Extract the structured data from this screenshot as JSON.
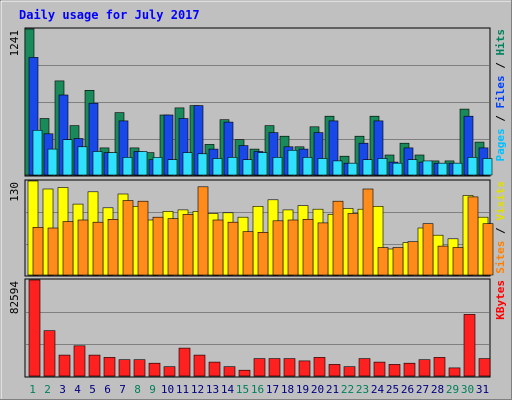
{
  "chart_data": {
    "type": "bar",
    "title": "Daily usage for July 2017",
    "categories": [
      "1",
      "2",
      "3",
      "4",
      "5",
      "6",
      "7",
      "8",
      "9",
      "10",
      "11",
      "12",
      "13",
      "14",
      "15",
      "16",
      "17",
      "18",
      "19",
      "20",
      "21",
      "22",
      "23",
      "24",
      "25",
      "26",
      "27",
      "28",
      "29",
      "30",
      "31"
    ],
    "weekend_days": [
      "1",
      "2",
      "8",
      "9",
      "15",
      "16",
      "22",
      "23",
      "29",
      "30"
    ],
    "panels": [
      {
        "max_label": "1241",
        "ylim": [
          0,
          1241
        ],
        "legend": [
          {
            "text": "Pages",
            "color": "#00c0ff"
          },
          {
            "text": " / ",
            "color": "#000000"
          },
          {
            "text": "Files",
            "color": "#0040ff"
          },
          {
            "text": " / ",
            "color": "#000000"
          },
          {
            "text": "Hits",
            "color": "#00805c"
          }
        ],
        "series": [
          {
            "name": "Hits",
            "color": "#1a8a5a",
            "values": [
              1241,
              480,
              800,
              420,
              720,
              230,
              530,
              230,
              190,
              510,
              570,
              590,
              260,
              470,
              300,
              220,
              420,
              330,
              240,
              410,
              500,
              160,
              330,
              500,
              170,
              270,
              170,
              120,
              120,
              560,
              280
            ]
          },
          {
            "name": "Files",
            "color": "#1848e8",
            "values": [
              1000,
              350,
              680,
              310,
              610,
              190,
              460,
              200,
              130,
              510,
              480,
              590,
              220,
              450,
              250,
              200,
              360,
              240,
              220,
              360,
              460,
              100,
              270,
              460,
              110,
              230,
              110,
              100,
              100,
              500,
              230
            ]
          },
          {
            "name": "Pages",
            "color": "#30e0ff",
            "values": [
              380,
              220,
              300,
              240,
              200,
              190,
              150,
              200,
              150,
              130,
              190,
              180,
              140,
              150,
              130,
              190,
              150,
              210,
              150,
              140,
              120,
              100,
              130,
              140,
              100,
              130,
              120,
              100,
              100,
              150,
              140
            ]
          }
        ]
      },
      {
        "max_label": "130",
        "ylim": [
          0,
          130
        ],
        "legend": [
          {
            "text": "Sites",
            "color": "#ff8000"
          },
          {
            "text": " / ",
            "color": "#000000"
          },
          {
            "text": "Visits",
            "color": "#e0e000"
          }
        ],
        "series": [
          {
            "name": "Visits",
            "color": "#ffff00",
            "values": [
              130,
              119,
              121,
              98,
              115,
              93,
              112,
              95,
              76,
              88,
              90,
              88,
              85,
              86,
              80,
              95,
              104,
              90,
              96,
              91,
              84,
              92,
              91,
              95,
              36,
              45,
              65,
              55,
              50,
              110,
              80
            ]
          },
          {
            "name": "Sites",
            "color": "#ff8c1a",
            "values": [
              66,
              65,
              74,
              76,
              73,
              77,
              103,
              102,
              80,
              78,
              84,
              122,
              76,
              73,
              60,
              59,
              75,
              76,
              77,
              72,
              102,
              85,
              119,
              38,
              38,
              46,
              71,
              40,
              38,
              108,
              71
            ]
          }
        ]
      },
      {
        "max_label": "82594",
        "ylim": [
          0,
          82594
        ],
        "legend": [
          {
            "text": "KBytes",
            "color": "#ff0000"
          }
        ],
        "series": [
          {
            "name": "KBytes",
            "color": "#ff2020",
            "values": [
              82594,
              39000,
              18000,
              26000,
              18000,
              16000,
              14000,
              14000,
              11000,
              8000,
              24000,
              18000,
              12000,
              8000,
              5000,
              15000,
              15000,
              15000,
              13000,
              16000,
              10000,
              8000,
              15000,
              12000,
              10000,
              11000,
              14000,
              16000,
              7000,
              53000,
              15000
            ]
          }
        ]
      }
    ]
  }
}
